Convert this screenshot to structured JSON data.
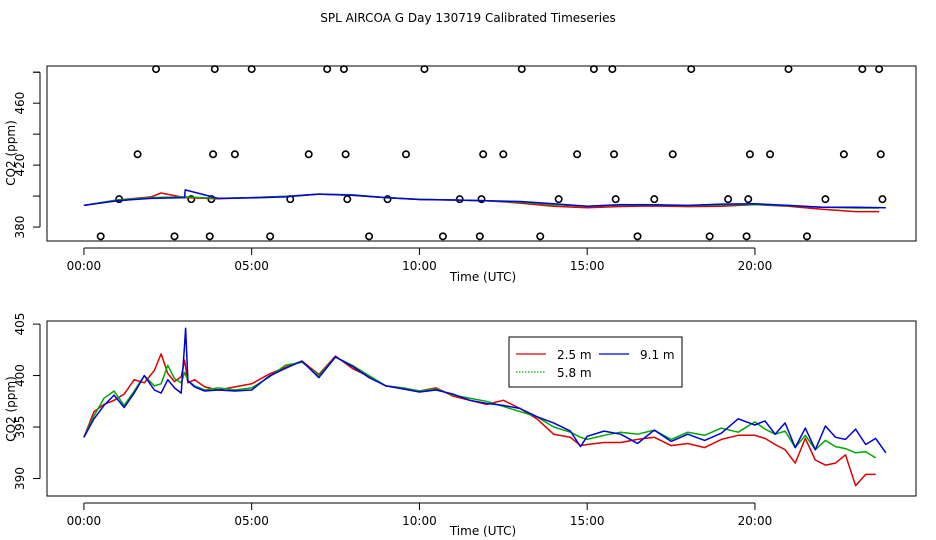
{
  "chart_data": [
    {
      "type": "line",
      "title": "SPL AIRCOA G  Day 130719  Calibrated Timeseries",
      "xlabel": "Time (UTC)",
      "ylabel": "CO2 (ppm)",
      "xlim": [
        -1.1,
        24.8
      ],
      "ylim": [
        371,
        484
      ],
      "x_ticks": [
        0,
        5,
        10,
        15,
        20
      ],
      "x_tick_labels": [
        "00:00",
        "05:00",
        "10:00",
        "15:00",
        "20:00"
      ],
      "y_ticks": [
        380,
        420,
        460
      ],
      "y_tick_labels": [
        "380",
        "420",
        "460"
      ],
      "calibration_points": {
        "name": "calibration",
        "color": "#000000",
        "x": [
          0.5,
          1.05,
          1.6,
          2.15,
          2.7,
          3.2,
          3.75,
          3.8,
          3.85,
          3.9,
          4.5,
          5.0,
          5.55,
          6.15,
          6.7,
          7.25,
          7.75,
          7.8,
          7.85,
          8.5,
          9.05,
          9.6,
          10.15,
          10.7,
          11.2,
          11.8,
          11.85,
          11.9,
          12.5,
          13.05,
          13.6,
          14.15,
          14.7,
          15.2,
          15.75,
          15.8,
          15.85,
          16.5,
          17.0,
          17.55,
          18.1,
          18.65,
          19.2,
          19.75,
          19.8,
          19.85,
          20.45,
          21.0,
          21.55,
          22.1,
          22.65,
          23.2,
          23.7,
          23.75,
          23.8
        ],
        "y": [
          374,
          398,
          427,
          482,
          374,
          398,
          374,
          398,
          427,
          482,
          427,
          482,
          374,
          398,
          427,
          482,
          482,
          427,
          398,
          374,
          398,
          427,
          482,
          374,
          398,
          374,
          398,
          427,
          427,
          482,
          374,
          398,
          427,
          482,
          482,
          427,
          398,
          374,
          398,
          427,
          482,
          374,
          398,
          374,
          398,
          427,
          427,
          482,
          374,
          398,
          427,
          482,
          482,
          427,
          398
        ]
      },
      "series": [
        {
          "name": "2.5 m",
          "color": "#dd0000",
          "x": [
            0,
            1,
            2,
            2.3,
            3,
            4,
            5,
            6,
            7,
            8,
            9,
            10,
            11,
            12,
            13,
            14,
            15,
            16,
            17,
            18,
            19,
            20,
            21,
            22,
            23,
            23.7
          ],
          "y": [
            394,
            397.5,
            399.5,
            402,
            399,
            398.3,
            399,
            399.8,
            401.3,
            400.5,
            399,
            397.8,
            397.5,
            397,
            395.5,
            393.5,
            392.5,
            393.3,
            393.6,
            393.2,
            393.5,
            394.5,
            393.5,
            391.5,
            390,
            390
          ]
        },
        {
          "name": "5.8 m",
          "color": "#00aa00",
          "x": [
            0,
            1,
            2,
            3,
            4,
            5,
            6,
            7,
            8,
            9,
            10,
            11,
            12,
            13,
            14,
            15,
            16,
            17,
            18,
            19,
            20,
            21,
            22,
            23,
            23.7
          ],
          "y": [
            394,
            397.5,
            399,
            399.5,
            398.5,
            399,
            399.8,
            401.3,
            400.8,
            399,
            398,
            397.5,
            397,
            396,
            394.5,
            393.5,
            394.2,
            394.3,
            393.8,
            394.3,
            394.6,
            393.8,
            392.8,
            392.3,
            392.3
          ]
        },
        {
          "name": "9.1 m",
          "color": "#0000dd",
          "x": [
            0,
            1,
            2,
            3,
            3.02,
            4,
            5,
            6,
            7,
            8,
            9,
            10,
            11,
            12,
            13,
            14,
            15,
            16,
            17,
            18,
            19,
            20,
            21,
            22,
            23,
            23.9
          ],
          "y": [
            394,
            397,
            398.5,
            399,
            404,
            398.5,
            398.8,
            399.5,
            401.3,
            400.5,
            399,
            397.8,
            397.5,
            397,
            396.5,
            395,
            393.5,
            394.5,
            394.4,
            394,
            394.8,
            395,
            394,
            392.8,
            392.8,
            392.5
          ]
        }
      ]
    },
    {
      "type": "line",
      "title": "",
      "xlabel": "Time (UTC)",
      "ylabel": "CO2 (ppm)",
      "xlim": [
        -1.1,
        24.8
      ],
      "ylim": [
        388.3,
        405.3
      ],
      "x_ticks": [
        0,
        5,
        10,
        15,
        20
      ],
      "x_tick_labels": [
        "00:00",
        "05:00",
        "10:00",
        "15:00",
        "20:00"
      ],
      "y_ticks": [
        390,
        395,
        400,
        405
      ],
      "y_tick_labels": [
        "390",
        "395",
        "400",
        "405"
      ],
      "legend": {
        "position": "top-center",
        "entries": [
          "2.5 m",
          "9.1 m",
          "5.8 m"
        ]
      },
      "series": [
        {
          "name": "2.5 m",
          "color": "#dd0000",
          "x": [
            0,
            0.3,
            0.6,
            0.9,
            1.2,
            1.5,
            1.8,
            2.1,
            2.3,
            2.5,
            2.7,
            2.9,
            3.0,
            3.1,
            3.3,
            3.6,
            4.0,
            4.5,
            5.0,
            5.5,
            6.0,
            6.5,
            7.0,
            7.5,
            8.0,
            8.5,
            9.0,
            9.5,
            10.0,
            10.5,
            11.0,
            11.5,
            12.0,
            12.5,
            13.0,
            13.5,
            14.0,
            14.5,
            14.8,
            15.0,
            15.5,
            16.0,
            16.5,
            17.0,
            17.5,
            18.0,
            18.5,
            19.0,
            19.5,
            20.0,
            20.3,
            20.6,
            20.9,
            21.2,
            21.5,
            21.8,
            22.1,
            22.4,
            22.7,
            23.0,
            23.3,
            23.6
          ],
          "y": [
            394,
            396.5,
            397.2,
            397.6,
            398.2,
            399.6,
            399.3,
            400.5,
            402.1,
            400.2,
            399.4,
            399.9,
            401.5,
            399.3,
            399.6,
            398.9,
            398.6,
            398.9,
            399.2,
            400.1,
            400.8,
            401.4,
            400.1,
            401.9,
            400.7,
            399.9,
            399.0,
            398.8,
            398.5,
            398.8,
            398.0,
            397.6,
            397.2,
            397.6,
            396.8,
            395.8,
            394.3,
            394.0,
            393.2,
            393.3,
            393.5,
            393.5,
            393.8,
            394.0,
            393.2,
            393.4,
            393.0,
            393.8,
            394.2,
            394.2,
            393.9,
            393.3,
            392.8,
            391.5,
            393.9,
            391.8,
            391.3,
            391.5,
            392.3,
            389.3,
            390.4,
            390.4
          ]
        },
        {
          "name": "5.8 m",
          "color": "#00aa00",
          "x": [
            0,
            0.3,
            0.6,
            0.9,
            1.2,
            1.5,
            1.8,
            2.1,
            2.3,
            2.5,
            2.7,
            2.9,
            3.0,
            3.1,
            3.3,
            3.6,
            4.0,
            4.5,
            5.0,
            5.5,
            6.0,
            6.5,
            7.0,
            7.5,
            8.0,
            8.5,
            9.0,
            9.5,
            10.0,
            10.5,
            11.0,
            11.5,
            12.0,
            12.5,
            13.0,
            13.5,
            14.0,
            14.5,
            14.8,
            15.0,
            15.5,
            16.0,
            16.5,
            17.0,
            17.5,
            18.0,
            18.5,
            19.0,
            19.5,
            20.0,
            20.3,
            20.6,
            20.9,
            21.2,
            21.5,
            21.8,
            22.1,
            22.4,
            22.7,
            23.0,
            23.3,
            23.6
          ],
          "y": [
            394,
            396.1,
            397.8,
            398.5,
            397.1,
            398.5,
            400.0,
            399.0,
            399.2,
            401.0,
            399.7,
            399.3,
            400.3,
            399.5,
            399.0,
            398.6,
            398.8,
            398.6,
            398.8,
            399.8,
            401.0,
            401.3,
            400.0,
            401.8,
            401.0,
            400.0,
            399.0,
            398.8,
            398.5,
            398.7,
            398.1,
            397.8,
            397.5,
            397.0,
            396.5,
            396.0,
            395.0,
            394.5,
            394.0,
            393.8,
            394.2,
            394.5,
            394.3,
            394.7,
            393.8,
            394.5,
            394.2,
            394.9,
            394.5,
            395.5,
            394.8,
            394.3,
            394.6,
            393.0,
            394.2,
            392.8,
            393.7,
            393.1,
            392.9,
            392.5,
            392.6,
            392.0
          ]
        },
        {
          "name": "9.1 m",
          "color": "#0000dd",
          "x": [
            0,
            0.3,
            0.6,
            0.9,
            1.2,
            1.5,
            1.8,
            2.1,
            2.3,
            2.5,
            2.7,
            2.9,
            3.0,
            3.03,
            3.1,
            3.3,
            3.6,
            4.0,
            4.5,
            5.0,
            5.5,
            6.0,
            6.5,
            7.0,
            7.5,
            8.0,
            8.5,
            9.0,
            9.5,
            10.0,
            10.5,
            11.0,
            11.5,
            12.0,
            12.5,
            13.0,
            13.5,
            14.0,
            14.5,
            14.8,
            15.0,
            15.5,
            16.0,
            16.5,
            17.0,
            17.5,
            18.0,
            18.5,
            19.0,
            19.5,
            20.0,
            20.3,
            20.6,
            20.9,
            21.2,
            21.5,
            21.8,
            22.1,
            22.4,
            22.7,
            23.0,
            23.3,
            23.6,
            23.9
          ],
          "y": [
            394,
            395.8,
            397.1,
            398.1,
            396.9,
            398.3,
            400.0,
            398.6,
            398.3,
            399.6,
            398.8,
            398.3,
            403.0,
            404.6,
            399.5,
            398.9,
            398.5,
            398.6,
            398.5,
            398.6,
            399.9,
            400.7,
            401.4,
            399.8,
            401.8,
            400.9,
            399.8,
            399.0,
            398.7,
            398.4,
            398.6,
            398.2,
            397.6,
            397.3,
            397.1,
            396.8,
            396.0,
            395.4,
            394.6,
            393.1,
            394.1,
            394.6,
            394.3,
            393.4,
            394.7,
            393.6,
            394.3,
            393.7,
            394.4,
            395.8,
            395.2,
            395.6,
            394.3,
            395.4,
            393.0,
            394.9,
            392.8,
            395.1,
            394.0,
            393.8,
            394.8,
            393.3,
            393.9,
            392.5
          ]
        }
      ]
    }
  ]
}
